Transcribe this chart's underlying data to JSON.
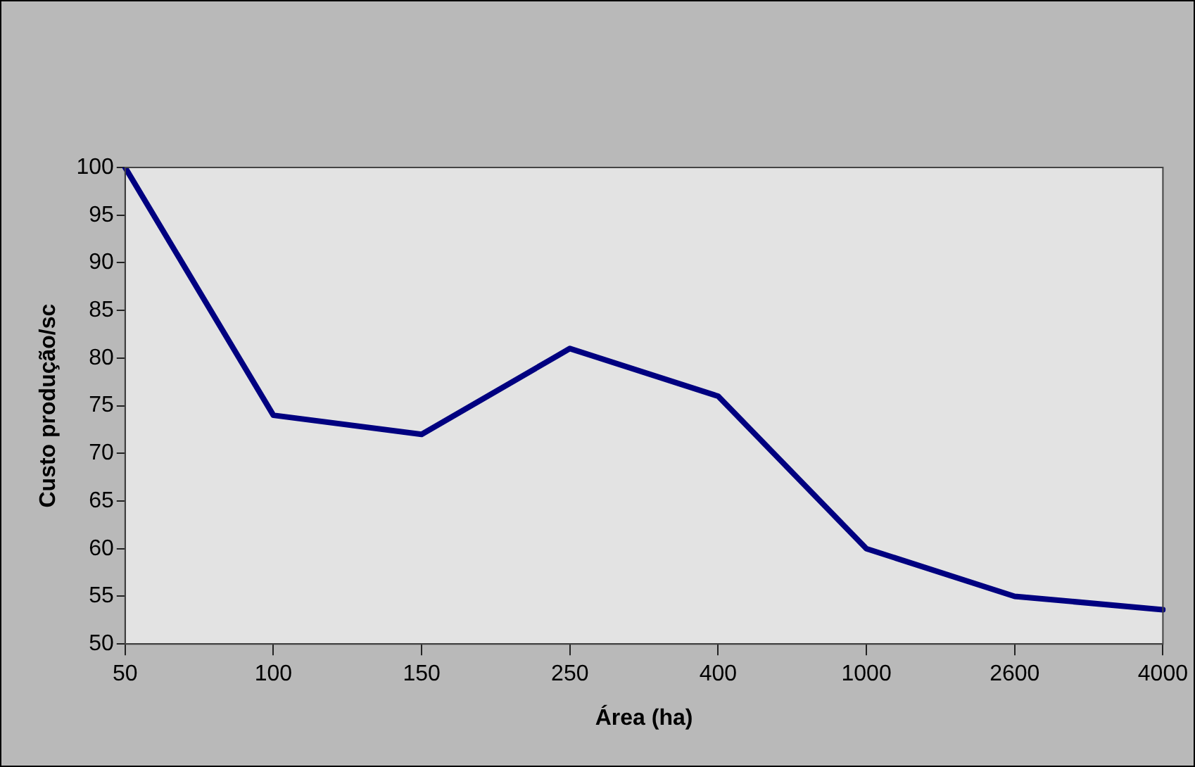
{
  "chart_data": {
    "type": "line",
    "xlabel": "Área (ha)",
    "ylabel": "Custo produção/sc",
    "categories": [
      "50",
      "100",
      "150",
      "250",
      "400",
      "1000",
      "2600",
      "4000"
    ],
    "series": [
      {
        "color": "#000080",
        "values": [
          100,
          74,
          72,
          81,
          76,
          60,
          55,
          53.6
        ]
      }
    ],
    "ylim": [
      50,
      100
    ],
    "yticks": [
      50,
      55,
      60,
      65,
      70,
      75,
      80,
      85,
      90,
      95,
      100
    ],
    "grid": false,
    "legend": false,
    "marker": "none",
    "line_style": "solid"
  }
}
